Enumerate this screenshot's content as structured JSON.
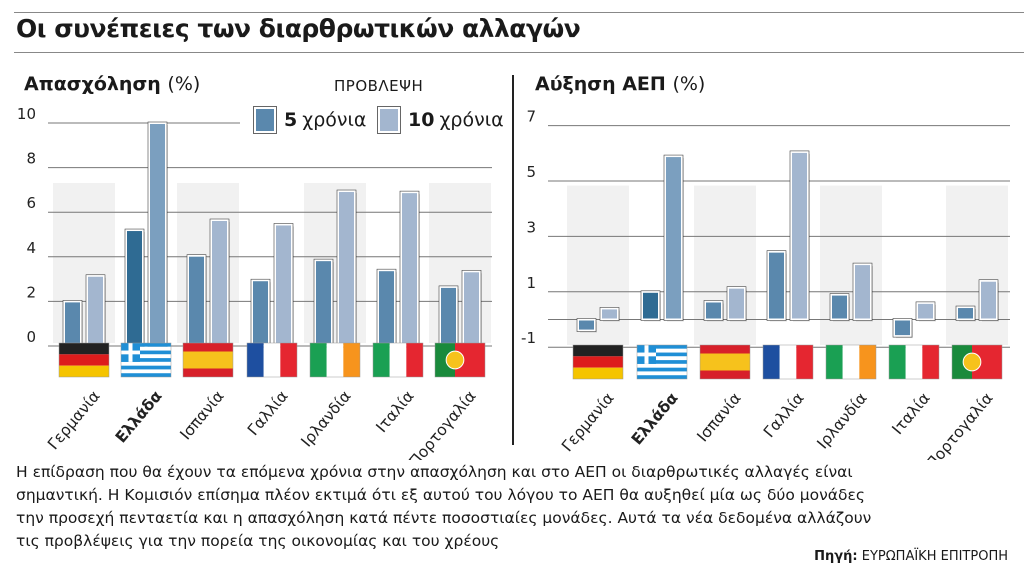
{
  "title": "Οι συνέπειες των διαρθρωτικών αλλαγών",
  "forecast_label": "ΠΡΟΒΛΕΨΗ",
  "legend": [
    {
      "num": "5",
      "text": "χρόνια",
      "color": "#5a88ad"
    },
    {
      "num": "10",
      "text": "χρόνια",
      "color": "#a3b6cf"
    }
  ],
  "description": "Η επίδραση που θα έχουν τα επόμενα χρόνια στην απασχόληση και στο ΑΕΠ οι διαρθρωτικές αλλαγές είναι σημαντική. Η Κομισιόν επίσημα πλέον εκτιμά ότι εξ αυτού του λόγου το ΑΕΠ θα αυξηθεί μία ως δύο μονάδες την προσεχή πενταετία και η απασχόληση κατά πέντε ποσοστιαίες μονάδες. Αυτά τα νέα δεδομένα αλλάζουν τις προβλέψεις για την πορεία της οικονομίας και του χρέους",
  "source": {
    "label": "Πηγή:",
    "value": "ΕΥΡΩΠΑΪΚΗ ΕΠΙΤΡΟΠΗ"
  },
  "chart_data": [
    {
      "type": "bar",
      "title": "Απασχόληση",
      "unit": "(%)",
      "categories": [
        "Γερμανία",
        "Ελλάδα",
        "Ισπανία",
        "Γαλλία",
        "Ιρλανδία",
        "Ιταλία",
        "Πορτογαλία"
      ],
      "highlight": "Ελλάδα",
      "series": [
        {
          "name": "5 χρόνια",
          "values": [
            2.0,
            5.2,
            4.05,
            2.95,
            3.85,
            3.4,
            2.65
          ]
        },
        {
          "name": "10 χρόνια",
          "values": [
            3.15,
            10.0,
            5.65,
            5.45,
            6.95,
            6.9,
            3.35
          ]
        }
      ],
      "yticks": [
        0,
        2,
        4,
        6,
        8,
        10
      ],
      "ylim": [
        0,
        10
      ],
      "grid": true
    },
    {
      "type": "bar",
      "title": "Αύξηση ΑΕΠ",
      "unit": "(%)",
      "categories": [
        "Γερμανία",
        "Ελλάδα",
        "Ισπανία",
        "Γαλλία",
        "Ιρλανδία",
        "Ιταλία",
        "Πορτογαλία"
      ],
      "highlight": "Ελλάδα",
      "series": [
        {
          "name": "5 χρόνια",
          "values": [
            -0.4,
            1.0,
            0.65,
            2.45,
            0.9,
            -0.6,
            0.45
          ]
        },
        {
          "name": "10 χρόνια",
          "values": [
            0.4,
            5.9,
            1.15,
            6.05,
            2.0,
            0.6,
            1.4
          ]
        }
      ],
      "yticks": [
        -1,
        1,
        3,
        5,
        7
      ],
      "ylim": [
        -1,
        7
      ],
      "grid": true
    }
  ],
  "flags": [
    "germany-flag-icon",
    "greece-flag-icon",
    "spain-flag-icon",
    "france-flag-icon",
    "ireland-flag-icon",
    "italy-flag-icon",
    "portugal-flag-icon"
  ]
}
